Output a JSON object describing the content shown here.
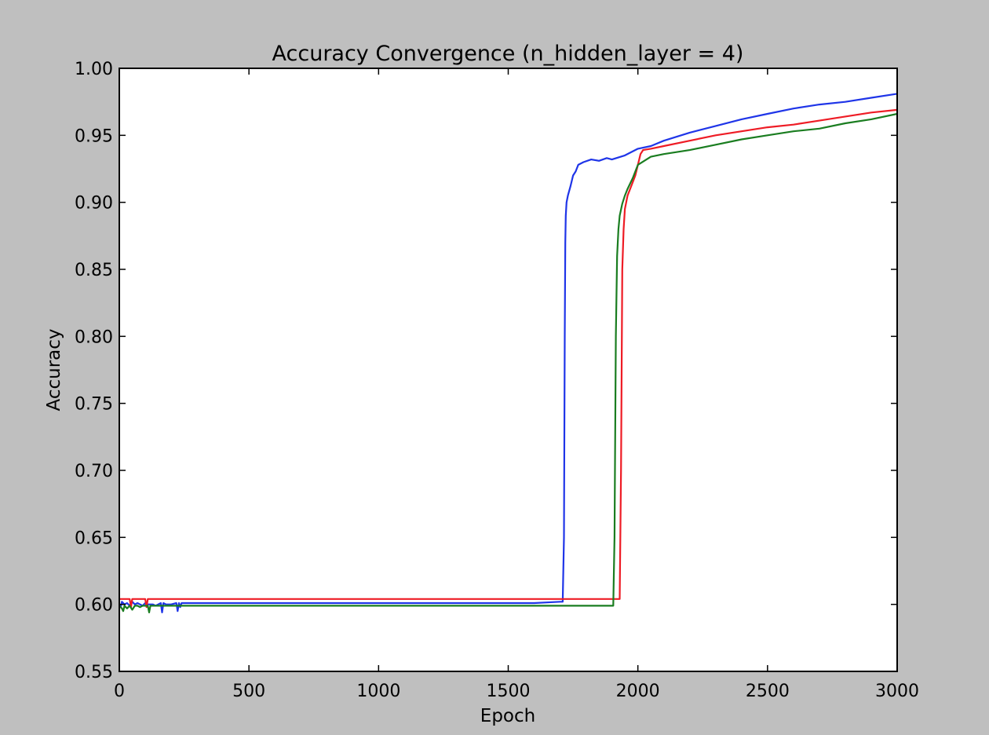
{
  "chart_data": {
    "type": "line",
    "title": "Accuracy Convergence (n_hidden_layer = 4)",
    "xlabel": "Epoch",
    "ylabel": "Accuracy",
    "xlim": [
      0,
      3000
    ],
    "ylim": [
      0.55,
      1.0
    ],
    "xticks": [
      0,
      500,
      1000,
      1500,
      2000,
      2500,
      3000
    ],
    "xtick_labels": [
      "0",
      "500",
      "1000",
      "1500",
      "2000",
      "2500",
      "3000"
    ],
    "yticks": [
      0.55,
      0.6,
      0.65,
      0.7,
      0.75,
      0.8,
      0.85,
      0.9,
      0.95,
      1.0
    ],
    "ytick_labels": [
      "0.55",
      "0.60",
      "0.65",
      "0.70",
      "0.75",
      "0.80",
      "0.85",
      "0.90",
      "0.95",
      "1.00"
    ],
    "grid": false,
    "legend": "none",
    "series": [
      {
        "color": "#1f35e8",
        "x": [
          0,
          5,
          10,
          20,
          30,
          40,
          50,
          60,
          70,
          80,
          90,
          100,
          110,
          120,
          130,
          140,
          150,
          160,
          165,
          170,
          180,
          190,
          200,
          220,
          225,
          230,
          235,
          240,
          260,
          400,
          600,
          800,
          1000,
          1200,
          1400,
          1600,
          1700,
          1710,
          1715,
          1718,
          1720,
          1722,
          1725,
          1730,
          1740,
          1750,
          1760,
          1770,
          1790,
          1820,
          1850,
          1880,
          1900,
          1950,
          2000,
          2050,
          2100,
          2200,
          2300,
          2400,
          2500,
          2600,
          2700,
          2800,
          2900,
          3000
        ],
        "y": [
          0.6,
          0.598,
          0.602,
          0.6,
          0.601,
          0.599,
          0.602,
          0.6,
          0.601,
          0.6,
          0.599,
          0.601,
          0.6,
          0.6,
          0.6,
          0.599,
          0.6,
          0.601,
          0.594,
          0.601,
          0.6,
          0.6,
          0.6,
          0.601,
          0.595,
          0.601,
          0.598,
          0.601,
          0.601,
          0.601,
          0.601,
          0.601,
          0.601,
          0.601,
          0.601,
          0.601,
          0.602,
          0.602,
          0.65,
          0.8,
          0.87,
          0.89,
          0.9,
          0.905,
          0.912,
          0.92,
          0.923,
          0.928,
          0.93,
          0.932,
          0.931,
          0.933,
          0.932,
          0.935,
          0.94,
          0.942,
          0.946,
          0.952,
          0.957,
          0.962,
          0.966,
          0.97,
          0.973,
          0.975,
          0.978,
          0.981
        ]
      },
      {
        "color": "#ee1c25",
        "x": [
          0,
          40,
          45,
          50,
          60,
          100,
          105,
          110,
          120,
          200,
          400,
          600,
          800,
          1000,
          1200,
          1400,
          1600,
          1800,
          1900,
          1920,
          1930,
          1935,
          1940,
          1945,
          1950,
          1960,
          1970,
          1980,
          1990,
          2000,
          2010,
          2020,
          2050,
          2100,
          2200,
          2300,
          2400,
          2500,
          2600,
          2700,
          2800,
          2900,
          3000
        ],
        "y": [
          0.604,
          0.604,
          0.598,
          0.604,
          0.604,
          0.604,
          0.598,
          0.604,
          0.604,
          0.604,
          0.604,
          0.604,
          0.604,
          0.604,
          0.604,
          0.604,
          0.604,
          0.604,
          0.604,
          0.604,
          0.604,
          0.7,
          0.85,
          0.88,
          0.895,
          0.905,
          0.91,
          0.915,
          0.92,
          0.928,
          0.936,
          0.939,
          0.94,
          0.942,
          0.946,
          0.95,
          0.953,
          0.956,
          0.958,
          0.961,
          0.964,
          0.967,
          0.969
        ]
      },
      {
        "color": "#1a7d20",
        "x": [
          0,
          10,
          15,
          20,
          30,
          40,
          50,
          60,
          70,
          80,
          90,
          100,
          110,
          115,
          120,
          130,
          200,
          400,
          600,
          800,
          1000,
          1200,
          1400,
          1600,
          1800,
          1900,
          1905,
          1910,
          1915,
          1920,
          1925,
          1930,
          1940,
          1950,
          1960,
          1980,
          2000,
          2050,
          2100,
          2200,
          2300,
          2400,
          2500,
          2600,
          2700,
          2800,
          2900,
          3000
        ],
        "y": [
          0.599,
          0.597,
          0.595,
          0.599,
          0.597,
          0.599,
          0.596,
          0.599,
          0.599,
          0.598,
          0.599,
          0.599,
          0.599,
          0.594,
          0.599,
          0.599,
          0.599,
          0.599,
          0.599,
          0.599,
          0.599,
          0.599,
          0.599,
          0.599,
          0.599,
          0.599,
          0.599,
          0.65,
          0.8,
          0.86,
          0.88,
          0.89,
          0.899,
          0.905,
          0.91,
          0.918,
          0.928,
          0.934,
          0.936,
          0.939,
          0.943,
          0.947,
          0.95,
          0.953,
          0.955,
          0.959,
          0.962,
          0.966
        ]
      }
    ]
  }
}
